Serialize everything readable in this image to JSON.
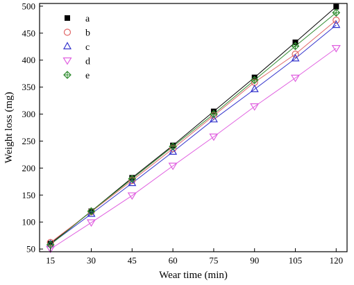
{
  "chart_data": {
    "type": "line",
    "xlabel": "Wear time (min)",
    "ylabel": "Weight loss (mg)",
    "x": [
      15,
      30,
      45,
      60,
      75,
      90,
      105,
      120
    ],
    "xlim": [
      11,
      124
    ],
    "ylim": [
      45,
      505
    ],
    "xticks": [
      15,
      30,
      45,
      60,
      75,
      90,
      105,
      120
    ],
    "yticks": [
      50,
      100,
      150,
      200,
      250,
      300,
      350,
      400,
      450,
      500
    ],
    "grid": false,
    "legend_position": "top-left",
    "series": [
      {
        "name": "a",
        "marker": "filled-square",
        "color": "#000000",
        "values": [
          60,
          120,
          182,
          242,
          305,
          368,
          433,
          499
        ]
      },
      {
        "name": "b",
        "marker": "open-circle",
        "color": "#e06666",
        "values": [
          62,
          119,
          177,
          236,
          297,
          359,
          411,
          474
        ]
      },
      {
        "name": "c",
        "marker": "open-triangle-up",
        "color": "#3333cc",
        "values": [
          59,
          115,
          172,
          230,
          290,
          346,
          403,
          465
        ]
      },
      {
        "name": "d",
        "marker": "open-triangle-down",
        "color": "#e060e0",
        "values": [
          50,
          99,
          149,
          204,
          258,
          314,
          367,
          422
        ]
      },
      {
        "name": "e",
        "marker": "crossed-diamond",
        "color": "#2e8b2e",
        "values": [
          58,
          120,
          180,
          240,
          300,
          363,
          426,
          488
        ]
      }
    ]
  }
}
